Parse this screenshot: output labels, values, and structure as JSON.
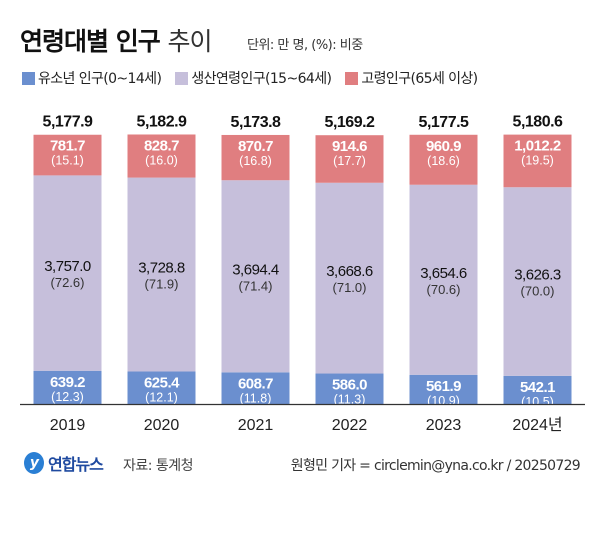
{
  "header": {
    "title_bold": "연령대별 인구",
    "title_light": "추이",
    "unit": "단위: 만 명, (%): 비중"
  },
  "colors": {
    "youth": "#6b8fcf",
    "working": "#c6bfdb",
    "elderly": "#e07e80"
  },
  "chart_data": {
    "type": "bar",
    "stacked": true,
    "categories": [
      "2019",
      "2020",
      "2021",
      "2022",
      "2023",
      "2024년"
    ],
    "series": [
      {
        "name": "유소년 인구(0~14세)",
        "values": [
          639.2,
          625.4,
          608.7,
          586.0,
          561.9,
          542.1
        ],
        "labels": [
          "639.2",
          "625.4",
          "608.7",
          "586.0",
          "561.9",
          "542.1"
        ],
        "shares": [
          "(12.3)",
          "(12.1)",
          "(11.8)",
          "(11.3)",
          "(10.9)",
          "(10.5)"
        ]
      },
      {
        "name": "생산연령인구(15~64세)",
        "values": [
          3757.0,
          3728.8,
          3694.4,
          3668.6,
          3654.6,
          3626.3
        ],
        "labels": [
          "3,757.0",
          "3,728.8",
          "3,694.4",
          "3,668.6",
          "3,654.6",
          "3,626.3"
        ],
        "shares": [
          "(72.6)",
          "(71.9)",
          "(71.4)",
          "(71.0)",
          "(70.6)",
          "(70.0)"
        ]
      },
      {
        "name": "고령인구(65세 이상)",
        "values": [
          781.7,
          828.7,
          870.7,
          914.6,
          960.9,
          1012.2
        ],
        "labels": [
          "781.7",
          "828.7",
          "870.7",
          "914.6",
          "960.9",
          "1,012.2"
        ],
        "shares": [
          "(15.1)",
          "(16.0)",
          "(16.8)",
          "(17.7)",
          "(18.6)",
          "(19.5)"
        ]
      }
    ],
    "totals": [
      "5,177.9",
      "5,182.9",
      "5,173.8",
      "5,169.2",
      "5,177.5",
      "5,180.6"
    ],
    "legend_position": "top-left",
    "grid": false
  },
  "footer": {
    "logo_text": "연합뉴스",
    "source": "자료: 통계청",
    "credit": "원형민 기자 = circlemin@yna.co.kr / 20250729"
  }
}
